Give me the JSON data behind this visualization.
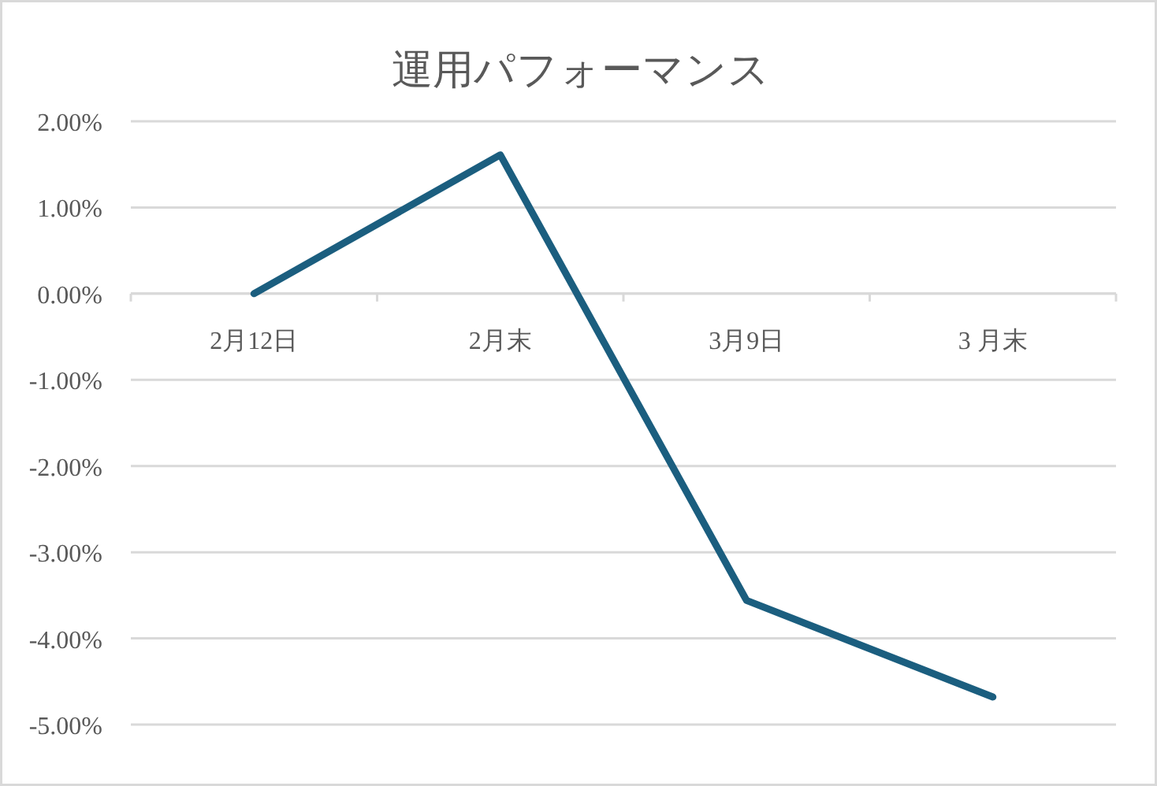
{
  "chart_data": {
    "type": "line",
    "title": "運用パフォーマンス",
    "categories": [
      "2月12日",
      "2月末",
      "3月9日",
      "3 月末"
    ],
    "values": [
      0,
      1.61,
      -3.56,
      -4.68
    ],
    "color": "#1b5e7f",
    "ylim": [
      -5,
      2
    ],
    "yticks": [
      {
        "value": 2,
        "label": "2.00%"
      },
      {
        "value": 1,
        "label": "1.00%"
      },
      {
        "value": 0,
        "label": "0.00%"
      },
      {
        "value": -1,
        "label": "-1.00%"
      },
      {
        "value": -2,
        "label": "-2.00%"
      },
      {
        "value": -3,
        "label": "-3.00%"
      },
      {
        "value": -4,
        "label": "-4.00%"
      },
      {
        "value": -5,
        "label": "-5.00%"
      }
    ],
    "grid": "y",
    "marker": "none",
    "line_style": "solid"
  }
}
